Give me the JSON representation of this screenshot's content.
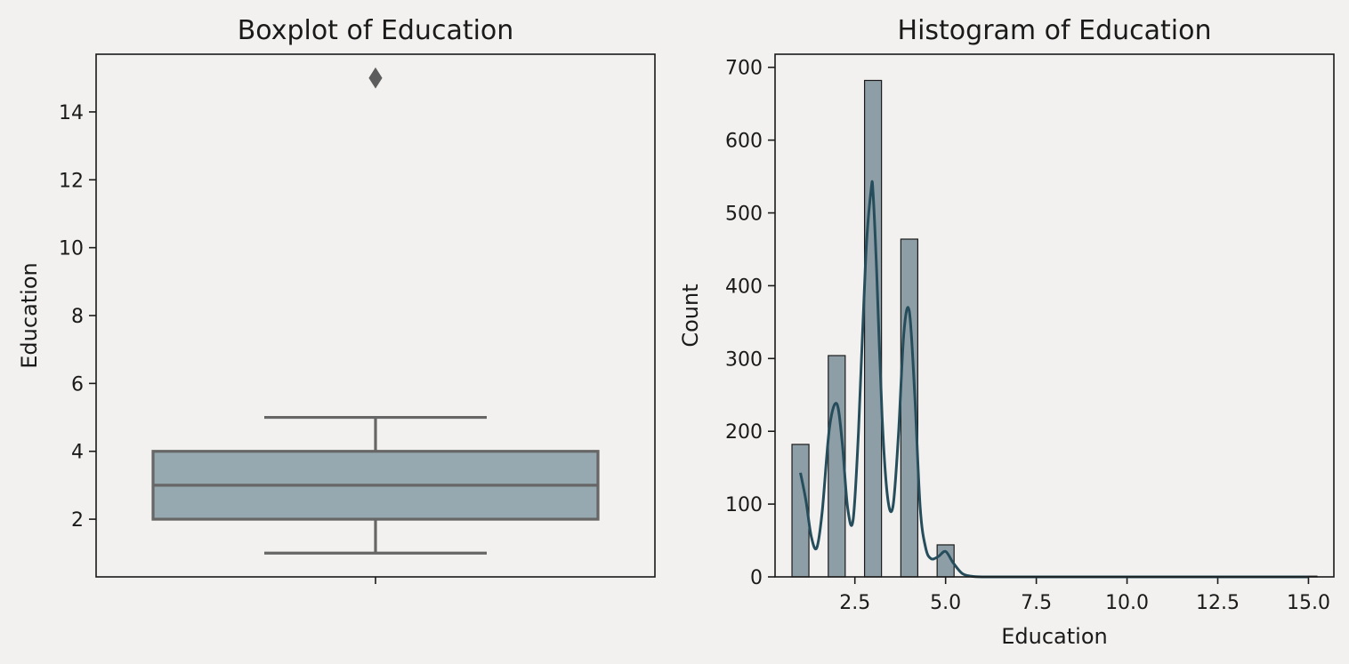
{
  "chart_data": [
    {
      "type": "box",
      "title": "Boxplot of Education",
      "xlabel": "",
      "ylabel": "Education",
      "ylim": [
        0.3,
        15.7
      ],
      "yticks": [
        2,
        4,
        6,
        8,
        10,
        12,
        14
      ],
      "box": {
        "whisker_low": 1,
        "q1": 2,
        "median": 3,
        "q3": 4,
        "whisker_high": 5,
        "outliers": [
          15
        ]
      },
      "colors": {
        "box": "#97a9b0",
        "lines": "#666666"
      }
    },
    {
      "type": "bar",
      "subtype": "histogram",
      "title": "Histogram of Education",
      "xlabel": "Education",
      "ylabel": "Count",
      "xlim": [
        0.3,
        15.7
      ],
      "ylim": [
        0,
        718
      ],
      "xticks": [
        "2.5",
        "5.0",
        "7.5",
        "10.0",
        "12.5",
        "15.0"
      ],
      "yticks": [
        0,
        100,
        200,
        300,
        400,
        500,
        600,
        700
      ],
      "bins": [
        {
          "x": 1,
          "count": 182
        },
        {
          "x": 2,
          "count": 304
        },
        {
          "x": 3,
          "count": 682
        },
        {
          "x": 4,
          "count": 464
        },
        {
          "x": 5,
          "count": 44
        },
        {
          "x": 15,
          "count": 1
        }
      ],
      "bin_width": 0.467,
      "kde": {
        "x": [
          1.0,
          1.15,
          1.3,
          1.45,
          1.6,
          1.8,
          2.0,
          2.15,
          2.3,
          2.45,
          2.6,
          2.8,
          2.95,
          3.0,
          3.1,
          3.25,
          3.4,
          3.55,
          3.7,
          3.85,
          4.0,
          4.15,
          4.3,
          4.45,
          4.6,
          4.8,
          5.0,
          5.2,
          5.45,
          5.7,
          6.0,
          7.0,
          8.0,
          9.0,
          10.0,
          11.0,
          12.0,
          13.0,
          14.0,
          15.0
        ],
        "y": [
          143,
          105,
          55,
          40,
          90,
          205,
          238,
          185,
          95,
          78,
          200,
          440,
          533,
          528,
          420,
          220,
          110,
          97,
          195,
          335,
          365,
          250,
          95,
          40,
          25,
          28,
          35,
          20,
          5,
          1,
          0,
          0,
          0,
          0,
          0,
          0,
          0,
          0,
          0,
          0
        ]
      },
      "colors": {
        "bars": "#8d9ea6",
        "kde": "#264d5b"
      }
    }
  ]
}
